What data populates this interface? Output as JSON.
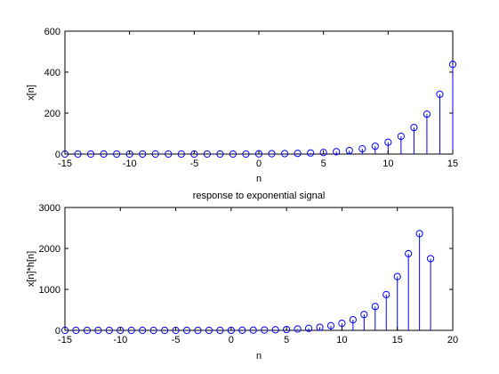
{
  "chart_data": [
    {
      "type": "stem",
      "title": "",
      "xlabel": "n",
      "ylabel": "x[n]",
      "xlim": [
        -15,
        15
      ],
      "ylim": [
        0,
        600
      ],
      "xticks": [
        -15,
        -10,
        -5,
        0,
        5,
        10,
        15
      ],
      "yticks": [
        0,
        200,
        400,
        600
      ],
      "xtick_labels": [
        "-15",
        "-10",
        "-5",
        "0",
        "5",
        "10",
        "15"
      ],
      "ytick_labels": [
        "0",
        "200",
        "400",
        "600"
      ],
      "color": "#0000ff",
      "x": [
        -15,
        -14,
        -13,
        -12,
        -11,
        -10,
        -9,
        -8,
        -7,
        -6,
        -5,
        -4,
        -3,
        -2,
        -1,
        0,
        1,
        2,
        3,
        4,
        5,
        6,
        7,
        8,
        9,
        10,
        11,
        12,
        13,
        14,
        15
      ],
      "values": [
        0,
        0,
        0,
        0,
        0,
        0,
        0,
        0,
        0,
        0,
        0,
        0,
        0,
        0,
        0,
        1,
        1.5,
        2.3,
        3.4,
        5.1,
        7.6,
        11.4,
        17.1,
        25.6,
        38.4,
        57.7,
        86.5,
        129.7,
        194.6,
        291.9,
        437.9
      ]
    },
    {
      "type": "stem",
      "title": "response to exponential signal",
      "xlabel": "n",
      "ylabel": "x[n]*h[n]",
      "xlim": [
        -15,
        20
      ],
      "ylim": [
        0,
        3000
      ],
      "xticks": [
        -15,
        -10,
        -5,
        0,
        5,
        10,
        15,
        20
      ],
      "yticks": [
        0,
        1000,
        2000,
        3000
      ],
      "xtick_labels": [
        "-15",
        "-10",
        "-5",
        "0",
        "5",
        "10",
        "15",
        "20"
      ],
      "ytick_labels": [
        "0",
        "1000",
        "2000",
        "3000"
      ],
      "color": "#0000ff",
      "x": [
        -15,
        -14,
        -13,
        -12,
        -11,
        -10,
        -9,
        -8,
        -7,
        -6,
        -5,
        -4,
        -3,
        -2,
        -1,
        0,
        1,
        2,
        3,
        4,
        5,
        6,
        7,
        8,
        9,
        10,
        11,
        12,
        13,
        14,
        15,
        16,
        17,
        18
      ],
      "values": [
        0,
        0,
        0,
        0,
        0,
        0,
        0,
        0,
        0,
        0,
        0,
        0,
        0,
        0,
        0,
        1,
        2.5,
        4.8,
        8.2,
        13.3,
        20.9,
        32.3,
        49.4,
        75,
        113.5,
        171.2,
        257.7,
        387.4,
        582,
        873.9,
        1311.8,
        1872.8,
        2361.4,
        1751
      ]
    }
  ]
}
